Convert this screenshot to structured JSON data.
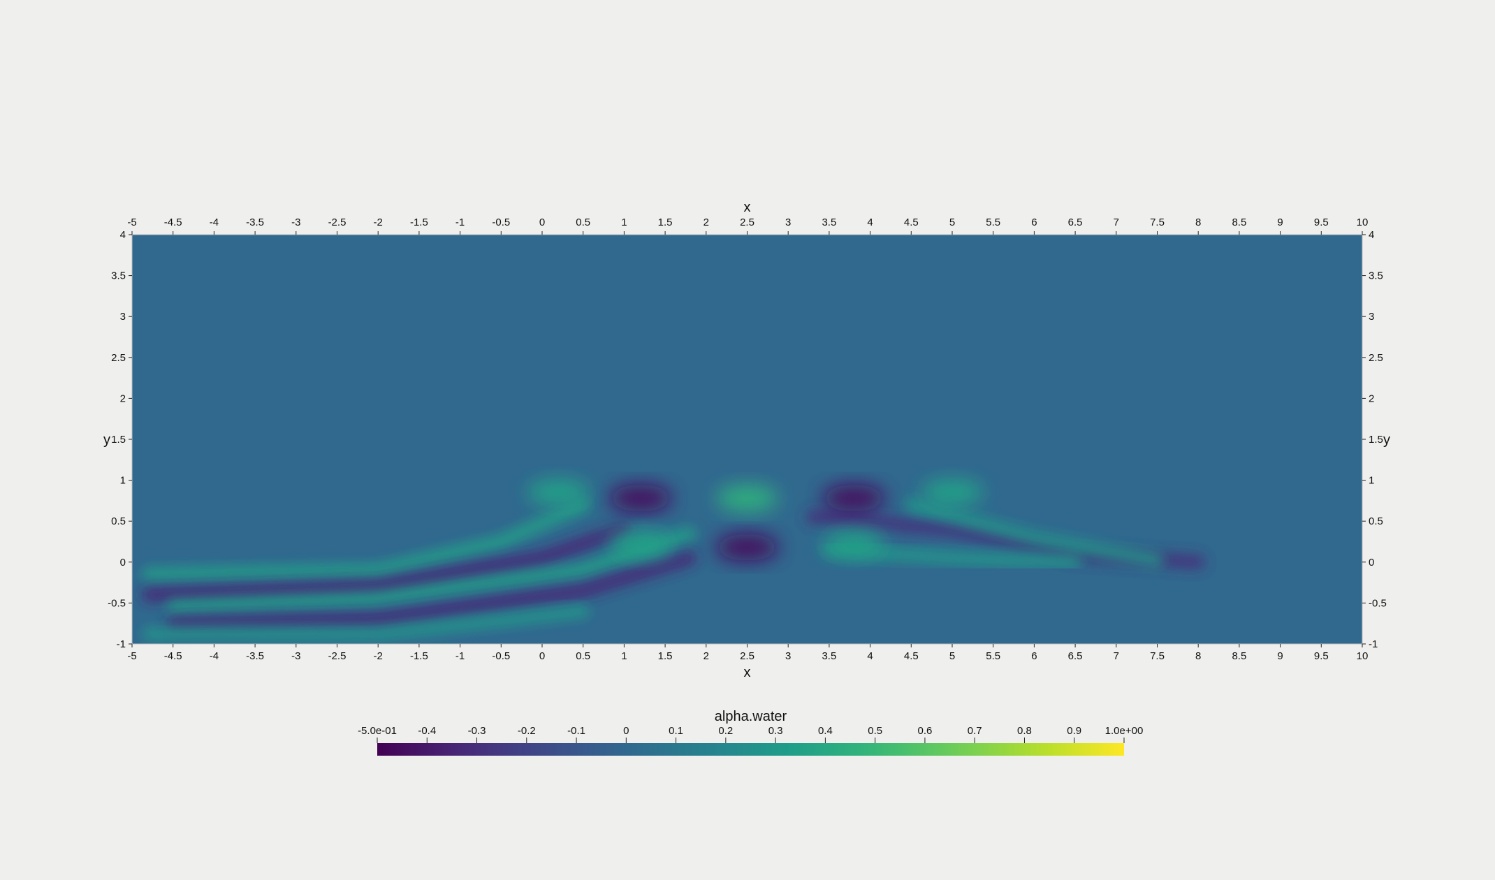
{
  "chart_data": {
    "type": "heatmap",
    "field": "alpha.water",
    "colormap": "viridis",
    "x_axis": {
      "label": "x",
      "range": [
        -5,
        10
      ],
      "ticks": [
        -5,
        -4.5,
        -4,
        -3.5,
        -3,
        -2.5,
        -2,
        -1.5,
        -1,
        -0.5,
        0,
        0.5,
        1,
        1.5,
        2,
        2.5,
        3,
        3.5,
        4,
        4.5,
        5,
        5.5,
        6,
        6.5,
        7,
        7.5,
        8,
        8.5,
        9,
        9.5,
        10
      ],
      "tick_labels": [
        "-5",
        "-4.5",
        "-4",
        "-3.5",
        "-3",
        "-2.5",
        "-2",
        "-1.5",
        "-1",
        "-0.5",
        "0",
        "0.5",
        "1",
        "1.5",
        "2",
        "2.5",
        "3",
        "3.5",
        "4",
        "4.5",
        "5",
        "5.5",
        "6",
        "6.5",
        "7",
        "7.5",
        "8",
        "8.5",
        "9",
        "9.5",
        "10"
      ]
    },
    "y_axis": {
      "label": "y",
      "range": [
        -1,
        4
      ],
      "ticks": [
        -1,
        -0.5,
        0,
        0.5,
        1,
        1.5,
        2,
        2.5,
        3,
        3.5,
        4
      ],
      "tick_labels": [
        "-1",
        "-0.5",
        "0",
        "0.5",
        "1",
        "1.5",
        "2",
        "2.5",
        "3",
        "3.5",
        "4"
      ]
    },
    "background_value": 0,
    "features": [
      {
        "shape": "blob",
        "x": 1.2,
        "y": 0.78,
        "value": -0.45
      },
      {
        "shape": "blob",
        "x": 2.5,
        "y": 0.78,
        "value": 0.45
      },
      {
        "shape": "blob",
        "x": 3.8,
        "y": 0.78,
        "value": -0.45
      },
      {
        "shape": "blob",
        "x": 0.2,
        "y": 0.85,
        "value": 0.35
      },
      {
        "shape": "blob",
        "x": 5.0,
        "y": 0.85,
        "value": 0.35
      },
      {
        "shape": "blob",
        "x": 2.5,
        "y": 0.18,
        "value": -0.45
      },
      {
        "shape": "blob",
        "x": 1.2,
        "y": 0.22,
        "value": 0.35
      },
      {
        "shape": "blob",
        "x": 3.8,
        "y": 0.22,
        "value": 0.35
      },
      {
        "shape": "band",
        "points": [
          [
            -4.8,
            -0.15
          ],
          [
            -2,
            -0.1
          ],
          [
            -0.5,
            0.25
          ],
          [
            0.5,
            0.7
          ]
        ],
        "value": 0.35
      },
      {
        "shape": "band",
        "points": [
          [
            -4.8,
            -0.4
          ],
          [
            -2,
            -0.3
          ],
          [
            0,
            0.05
          ],
          [
            1,
            0.4
          ]
        ],
        "value": -0.35
      },
      {
        "shape": "band",
        "points": [
          [
            -4.5,
            -0.55
          ],
          [
            -2,
            -0.45
          ],
          [
            0.5,
            -0.1
          ],
          [
            1.8,
            0.35
          ]
        ],
        "value": 0.35
      },
      {
        "shape": "band",
        "points": [
          [
            -4.5,
            -0.75
          ],
          [
            -2,
            -0.7
          ],
          [
            0.5,
            -0.35
          ],
          [
            1.8,
            0.05
          ]
        ],
        "value": -0.35
      },
      {
        "shape": "band",
        "points": [
          [
            -4.8,
            -0.88
          ],
          [
            -2,
            -0.88
          ],
          [
            0.5,
            -0.6
          ]
        ],
        "value": 0.3
      },
      {
        "shape": "band",
        "points": [
          [
            3.3,
            0.55
          ],
          [
            5,
            0.4
          ],
          [
            6.5,
            0.1
          ],
          [
            8,
            0
          ]
        ],
        "value": -0.3
      },
      {
        "shape": "band",
        "points": [
          [
            4.5,
            0.7
          ],
          [
            6,
            0.3
          ],
          [
            7.5,
            0.02
          ]
        ],
        "value": 0.3
      },
      {
        "shape": "band",
        "points": [
          [
            3.5,
            0.15
          ],
          [
            5,
            0.05
          ],
          [
            6.5,
            0.0
          ]
        ],
        "value": 0.3
      }
    ],
    "colorbar": {
      "title": "alpha.water",
      "range": [
        -0.5,
        1.0
      ],
      "ticks": [
        -0.5,
        -0.4,
        -0.3,
        -0.2,
        -0.1,
        0,
        0.1,
        0.2,
        0.3,
        0.4,
        0.5,
        0.6,
        0.7,
        0.8,
        0.9,
        1.0
      ],
      "tick_labels": [
        "-5.0e-01",
        "-0.4",
        "-0.3",
        "-0.2",
        "-0.1",
        "0",
        "0.1",
        "0.2",
        "0.3",
        "0.4",
        "0.5",
        "0.6",
        "0.7",
        "0.8",
        "0.9",
        "1.0e+00"
      ]
    }
  }
}
